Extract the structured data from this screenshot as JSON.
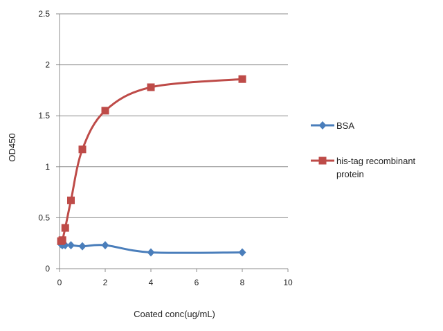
{
  "chart_data": {
    "type": "scatter",
    "title": "",
    "xlabel": "Coated conc(ug/mL)",
    "ylabel": "OD450",
    "xlim": [
      0,
      10
    ],
    "ylim": [
      0,
      2.5
    ],
    "xticks": [
      "0",
      "2",
      "4",
      "6",
      "8",
      "10"
    ],
    "yticks": [
      "0",
      "0.5",
      "1",
      "1.5",
      "2",
      "2.5"
    ],
    "grid": "horizontal",
    "legend_position": "right",
    "smooth_lines": true,
    "series": [
      {
        "name": "BSA",
        "color": "#4a7ebb",
        "marker": "diamond",
        "x": [
          0.0625,
          0.125,
          0.25,
          0.5,
          1,
          2,
          4,
          8
        ],
        "y": [
          0.24,
          0.23,
          0.23,
          0.23,
          0.22,
          0.23,
          0.16,
          0.16
        ]
      },
      {
        "name": "his-tag recombinant protein",
        "color": "#be4b48",
        "marker": "square",
        "x": [
          0.0625,
          0.125,
          0.25,
          0.5,
          1,
          2,
          4,
          8
        ],
        "y": [
          0.27,
          0.28,
          0.4,
          0.67,
          1.17,
          1.55,
          1.78,
          1.86
        ]
      }
    ]
  }
}
